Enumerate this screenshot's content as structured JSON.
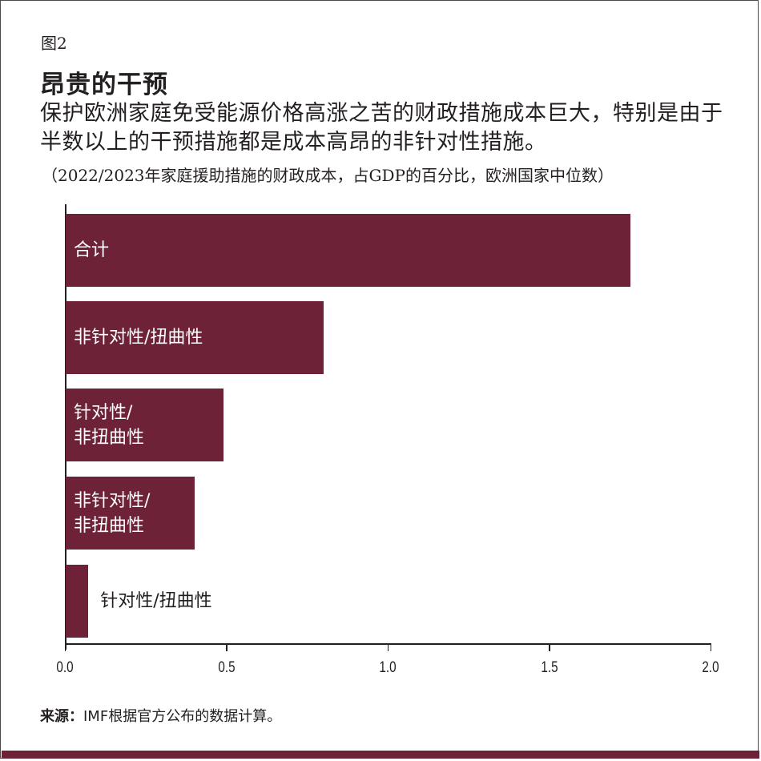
{
  "figure": {
    "label": "图2",
    "title": "昂贵的干预",
    "subtitle": "保护欧洲家庭免受能源价格高涨之苦的财政措施成本巨大，特别是由于半数以上的干预措施都是成本高昂的非针对性措施。",
    "note": "（2022/2023年家庭援助措施的财政成本，占GDP的百分比，欧洲国家中位数）",
    "source_label": "来源：",
    "source_text": "IMF根据官方公布的数据计算。"
  },
  "colors": {
    "bar": "#6e2237",
    "text": "#231f20",
    "band": "#6e2237"
  },
  "chart_data": {
    "type": "bar",
    "orientation": "horizontal",
    "title": "昂贵的干预",
    "subtitle": "（2022/2023年家庭援助措施的财政成本，占GDP的百分比，欧洲国家中位数）",
    "categories": [
      "合计",
      "非针对性/扭曲性",
      "针对性/非扭曲性",
      "非针对性/非扭曲性",
      "针对性/扭曲性"
    ],
    "values": [
      1.75,
      0.8,
      0.49,
      0.4,
      0.07
    ],
    "xlabel": "",
    "ylabel": "",
    "xlim": [
      0.0,
      2.0
    ],
    "xticks": [
      "0.0",
      "0.5",
      "1.0",
      "1.5",
      "2.0"
    ],
    "grid": false,
    "legend": null
  },
  "bars": [
    {
      "label_line1": "合计",
      "label_line2": ""
    },
    {
      "label_line1": "非针对性/扭曲性",
      "label_line2": ""
    },
    {
      "label_line1": "针对性/",
      "label_line2": "非扭曲性"
    },
    {
      "label_line1": "非针对性/",
      "label_line2": "非扭曲性"
    },
    {
      "label_line1": "针对性/扭曲性",
      "label_line2": ""
    }
  ]
}
